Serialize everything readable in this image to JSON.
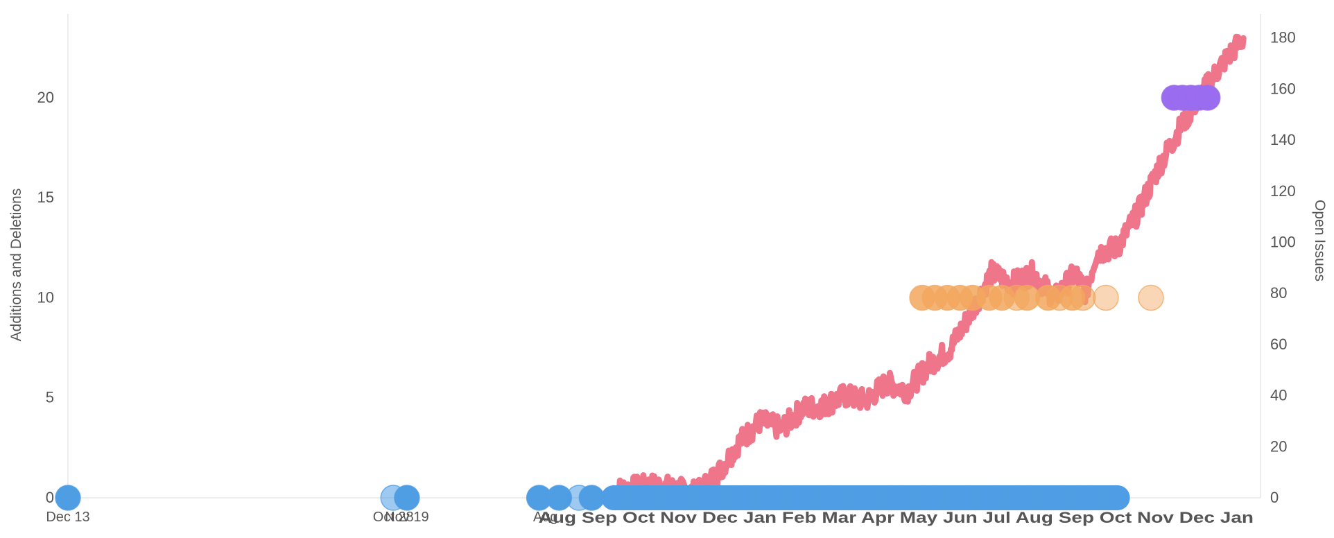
{
  "chart_data": {
    "type": "scatter",
    "y_left": {
      "label": "Additions and Deletions",
      "ticks": [
        0,
        5,
        10,
        15,
        20
      ],
      "range": [
        0,
        23.5
      ]
    },
    "y_right": {
      "label": "Open Issues",
      "ticks": [
        0,
        20,
        40,
        60,
        80,
        100,
        120,
        140,
        160,
        180
      ],
      "range": [
        0,
        184
      ]
    },
    "x_labels": [
      {
        "text": "Dec 13",
        "pos": 0.0
      },
      {
        "text": "Oct 28",
        "pos": 0.31
      },
      {
        "text": "Nov 19",
        "pos": 0.323
      },
      {
        "text": "Aug",
        "pos": 0.455
      }
    ],
    "crowded_label_overlay": {
      "text": "Aug Sep Oct Nov Dec Jan Feb Mar Apr May Jun Jul Aug Sep Oct Nov Dec Jan",
      "from": 0.455,
      "to": 1.0
    },
    "colors": {
      "open_issues": "#ee6e85",
      "additions_deletions": "#4f9de3",
      "orange_points": "#f2a75e",
      "purple_points": "#9a6cf0",
      "grid": "#e6e6e6",
      "axis_text": "#555555"
    },
    "series": [
      {
        "name": "",
        "axis": "left",
        "kind": "markers",
        "color": "#4f9de3",
        "points": [
          {
            "x": 0.0,
            "y": 0,
            "alpha": 1.0
          },
          {
            "x": 0.31,
            "y": 0,
            "alpha": 0.55
          },
          {
            "x": 0.323,
            "y": 0,
            "alpha": 1.0
          },
          {
            "x": 0.449,
            "y": 0,
            "alpha": 1.0
          },
          {
            "x": 0.468,
            "y": 0,
            "alpha": 1.0
          },
          {
            "x": 0.487,
            "y": 0,
            "alpha": 0.55
          },
          {
            "x": 0.499,
            "y": 0,
            "alpha": 1.0
          }
        ],
        "dense_band": {
          "from": 0.52,
          "to": 1.0,
          "y": 0
        }
      },
      {
        "name": "",
        "axis": "left",
        "kind": "markers",
        "color": "#f2a75e",
        "points": [
          {
            "x": 0.814,
            "y": 10,
            "alpha": 0.85
          },
          {
            "x": 0.826,
            "y": 10,
            "alpha": 0.85
          },
          {
            "x": 0.838,
            "y": 10,
            "alpha": 0.85
          },
          {
            "x": 0.85,
            "y": 10,
            "alpha": 0.85
          },
          {
            "x": 0.862,
            "y": 10,
            "alpha": 0.85
          },
          {
            "x": 0.878,
            "y": 10,
            "alpha": 0.85
          },
          {
            "x": 0.89,
            "y": 10,
            "alpha": 0.85
          },
          {
            "x": 0.904,
            "y": 10,
            "alpha": 0.6
          },
          {
            "x": 0.914,
            "y": 10,
            "alpha": 0.85
          },
          {
            "x": 0.934,
            "y": 10,
            "alpha": 0.85
          },
          {
            "x": 0.945,
            "y": 10,
            "alpha": 0.6
          },
          {
            "x": 0.957,
            "y": 10,
            "alpha": 0.85
          },
          {
            "x": 0.967,
            "y": 10,
            "alpha": 0.6
          },
          {
            "x": 0.989,
            "y": 10,
            "alpha": 0.45
          },
          {
            "x": 1.032,
            "y": 10,
            "alpha": 0.45
          }
        ]
      },
      {
        "name": "",
        "axis": "left",
        "kind": "markers",
        "color": "#9a6cf0",
        "points": [
          {
            "x": 1.054,
            "y": 20,
            "alpha": 1.0
          },
          {
            "x": 1.062,
            "y": 20,
            "alpha": 1.0
          },
          {
            "x": 1.07,
            "y": 20,
            "alpha": 1.0
          },
          {
            "x": 1.078,
            "y": 20,
            "alpha": 1.0
          },
          {
            "x": 1.086,
            "y": 20,
            "alpha": 1.0
          }
        ]
      },
      {
        "name": "",
        "axis": "right",
        "kind": "noisy-line",
        "color": "#ee6e85",
        "trend": [
          [
            0.52,
            3
          ],
          [
            0.56,
            5
          ],
          [
            0.6,
            2
          ],
          [
            0.62,
            10
          ],
          [
            0.64,
            22
          ],
          [
            0.66,
            30
          ],
          [
            0.68,
            27
          ],
          [
            0.7,
            35
          ],
          [
            0.72,
            36
          ],
          [
            0.74,
            40
          ],
          [
            0.76,
            38
          ],
          [
            0.78,
            45
          ],
          [
            0.8,
            42
          ],
          [
            0.82,
            52
          ],
          [
            0.84,
            58
          ],
          [
            0.86,
            72
          ],
          [
            0.88,
            88
          ],
          [
            0.9,
            84
          ],
          [
            0.92,
            88
          ],
          [
            0.94,
            78
          ],
          [
            0.96,
            88
          ],
          [
            0.97,
            80
          ],
          [
            0.98,
            96
          ],
          [
            1.0,
            98
          ],
          [
            1.02,
            112
          ],
          [
            1.04,
            130
          ],
          [
            1.06,
            145
          ],
          [
            1.08,
            158
          ],
          [
            1.1,
            170
          ],
          [
            1.12,
            180
          ]
        ]
      }
    ]
  }
}
